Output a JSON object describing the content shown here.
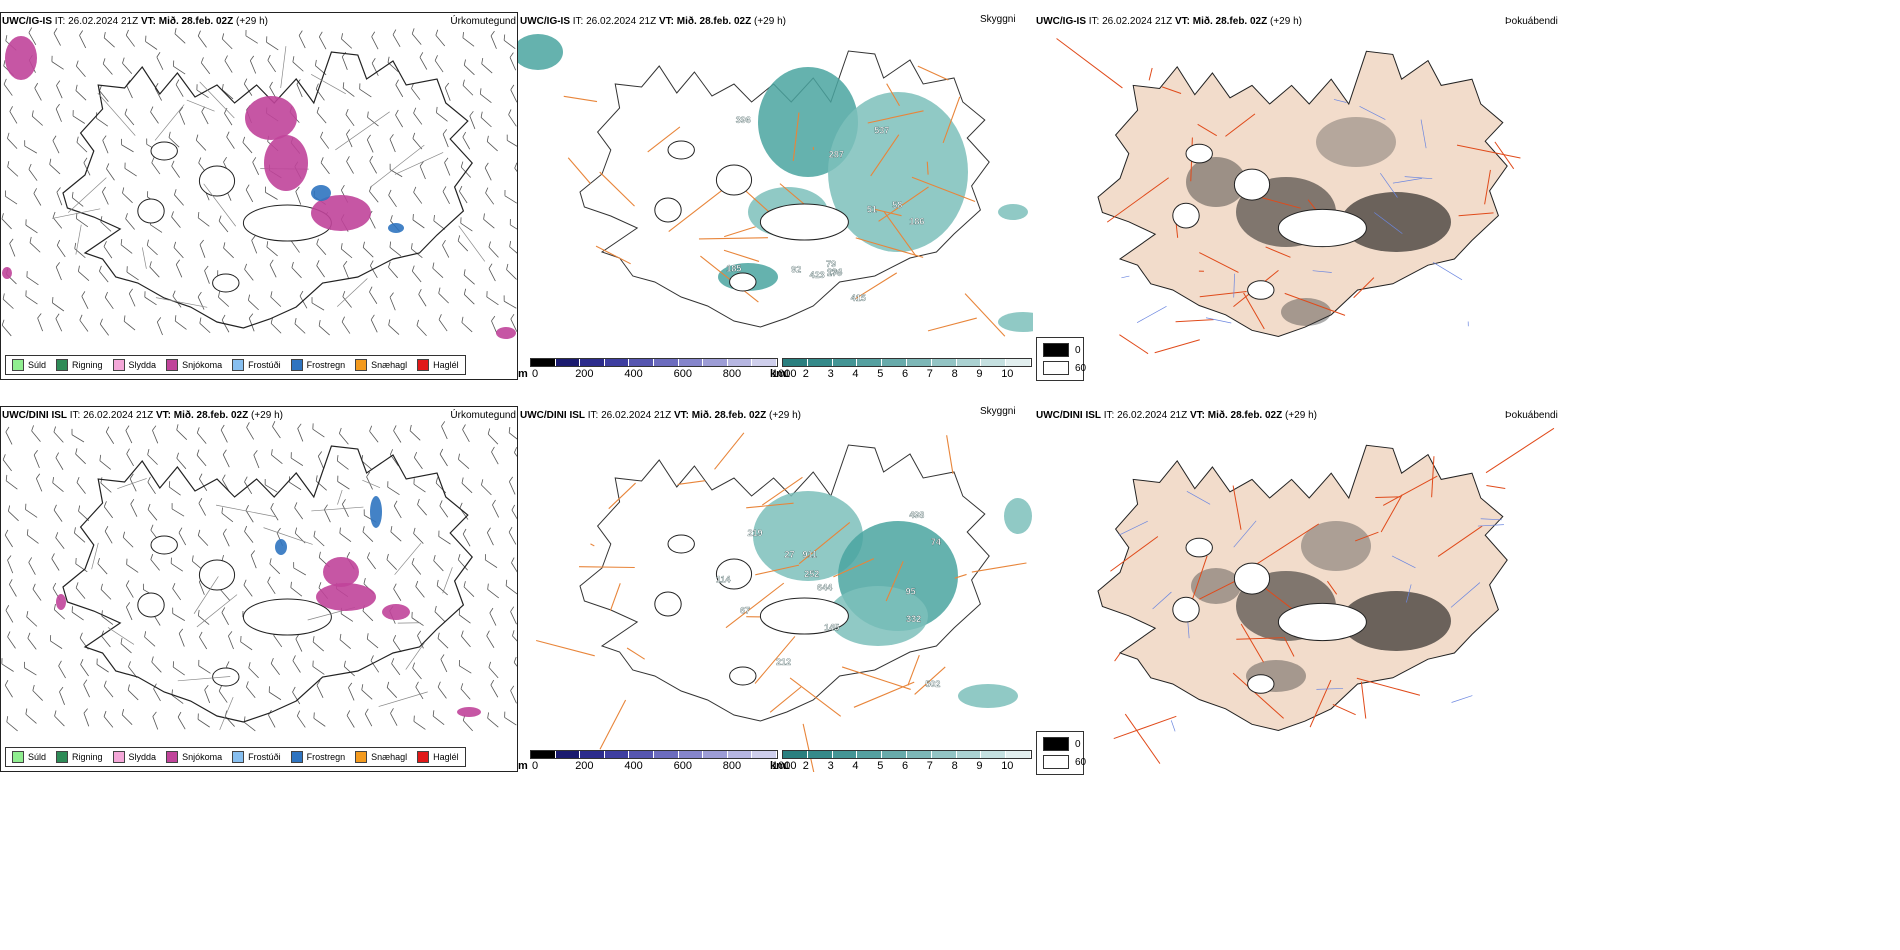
{
  "rows": [
    {
      "model": "UWC/IG-IS",
      "it_label": "IT:",
      "it": "26.02.2024 21Z",
      "vt_label": "VT:",
      "vt": "Mið. 28.feb. 02Z",
      "lead": "(+29 h)"
    },
    {
      "model": "UWC/DINI ISL",
      "it_label": "IT:",
      "it": "26.02.2024 21Z",
      "vt_label": "VT:",
      "vt": "Mið. 28.feb. 02Z",
      "lead": "(+29 h)"
    }
  ],
  "titles": {
    "precip_type": "Úrkomutegund",
    "cloud": "Skyggni",
    "fog": "Þokuábendi"
  },
  "precip_legend": [
    {
      "label": "Súld",
      "color": "#90ee90"
    },
    {
      "label": "Rigning",
      "color": "#2e8b57"
    },
    {
      "label": "Slydda",
      "color": "#f4a7d8"
    },
    {
      "label": "Snjókoma",
      "color": "#c0449a"
    },
    {
      "label": "Frostúði",
      "color": "#87bff0"
    },
    {
      "label": "Frostregn",
      "color": "#2f74c0"
    },
    {
      "label": "Snæhagl",
      "color": "#f39a1e"
    },
    {
      "label": "Haglél",
      "color": "#e01818"
    }
  ],
  "height_bar": {
    "unit": "m",
    "ticks": [
      "0",
      "200",
      "400",
      "600",
      "800",
      "1000"
    ],
    "colors": [
      "#000000",
      "#1a1a6e",
      "#2c2c8c",
      "#3e3ea0",
      "#5656b0",
      "#6c6cbe",
      "#8585cb",
      "#9d9dd6",
      "#b6b6e1",
      "#cfcfec"
    ]
  },
  "km_bar": {
    "unit": "km",
    "ticks": [
      "1",
      "2",
      "3",
      "4",
      "5",
      "6",
      "7",
      "8",
      "9",
      "10"
    ],
    "colors": [
      "#2a7f7f",
      "#358a8a",
      "#449595",
      "#55a0a0",
      "#68abab",
      "#7db7b7",
      "#93c4c4",
      "#abd2d2",
      "#c5e0e0",
      "#e2efef"
    ]
  },
  "fog_legend": [
    {
      "label": "0",
      "color": "#000000"
    },
    {
      "label": "60",
      "color": "#ffffff"
    }
  ],
  "cloud_labels": [
    [
      "537",
      "396",
      "58",
      "294",
      "186",
      "423",
      "287",
      "415",
      "170",
      "185",
      "51",
      "92",
      "79"
    ],
    [
      "252",
      "644",
      "498",
      "911",
      "502",
      "332",
      "219",
      "212",
      "145",
      "114",
      "95",
      "67",
      "27",
      "74"
    ]
  ]
}
